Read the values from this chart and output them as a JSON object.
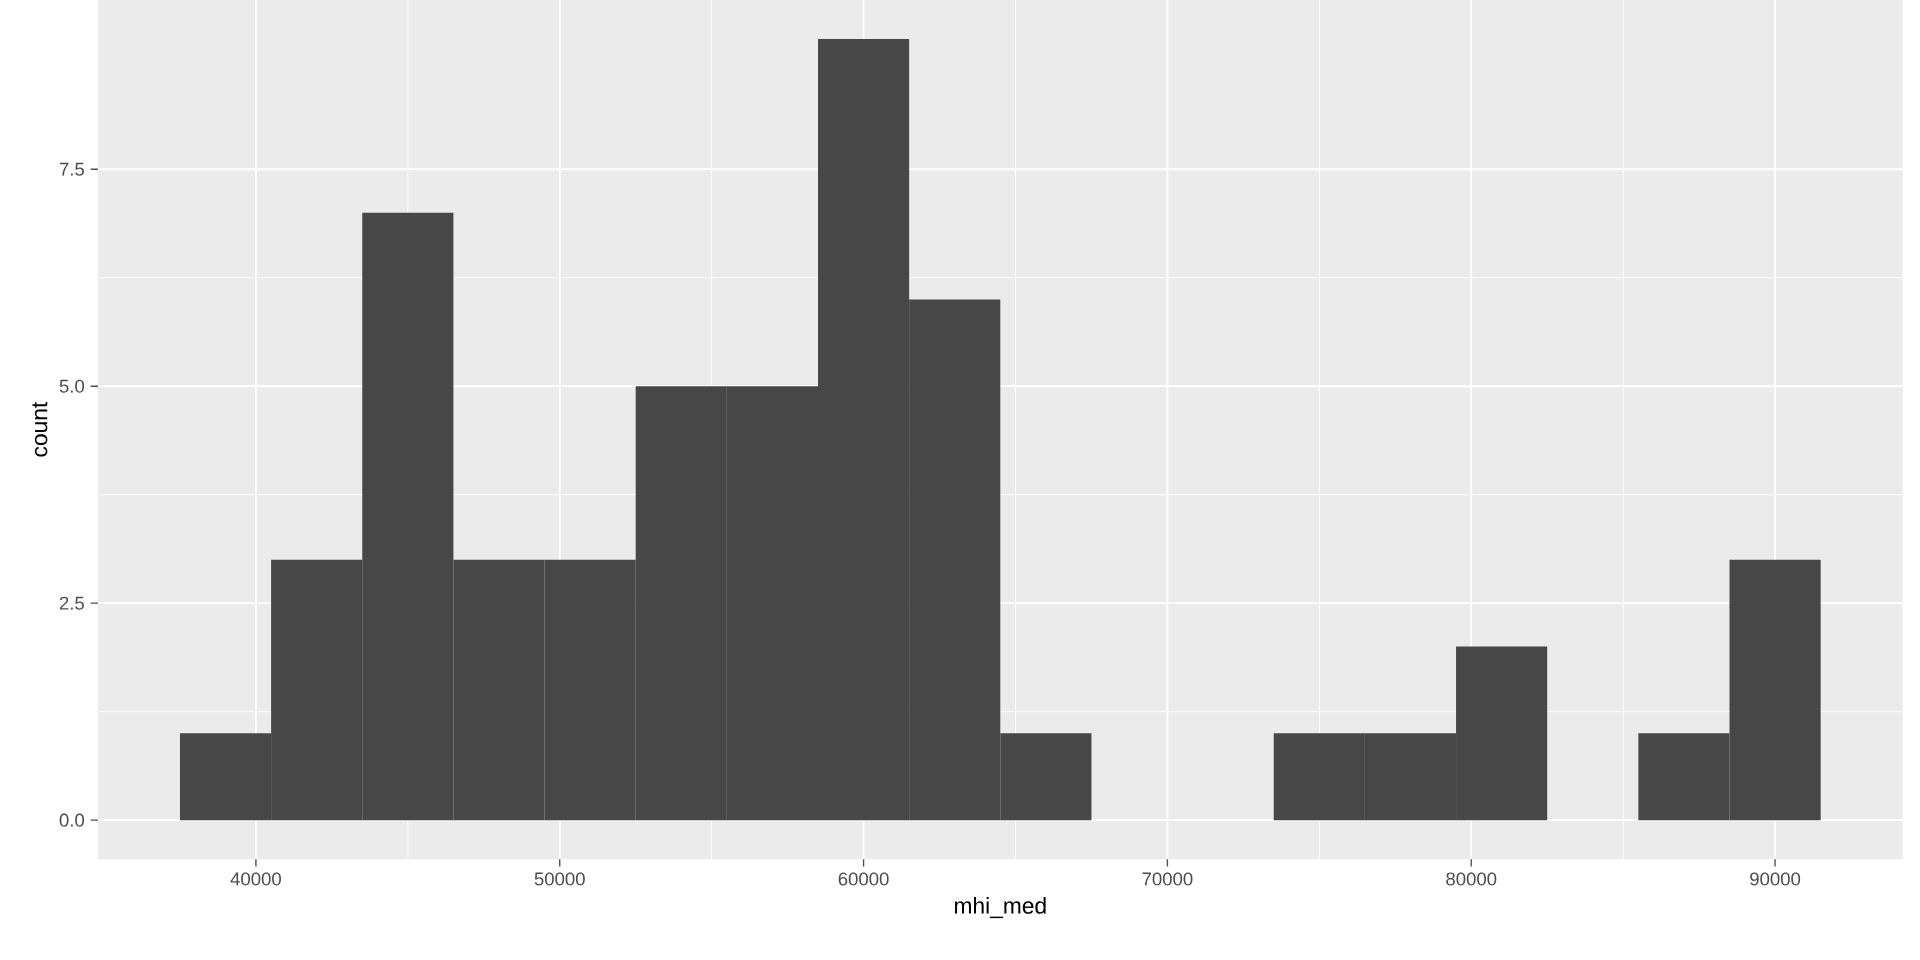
{
  "chart_data": {
    "type": "histogram",
    "xlabel": "mhi_med",
    "ylabel": "count",
    "bins": [
      37500,
      40500,
      43500,
      46500,
      49500,
      52500,
      55500,
      58500,
      61500,
      64500,
      67500,
      70500,
      73500,
      76500,
      79500,
      82500,
      85500,
      88500,
      91500
    ],
    "values": [
      1,
      3,
      7,
      3,
      3,
      5,
      5,
      9,
      6,
      1,
      0,
      0,
      1,
      1,
      2,
      0,
      1,
      3
    ],
    "color": "#474747",
    "xlim": [
      34800,
      94200
    ],
    "ylim": [
      -0.45,
      9.45
    ],
    "xticks": [
      40000,
      50000,
      60000,
      70000,
      80000,
      90000
    ],
    "yticks": [
      {
        "value": 0,
        "label": "0.0"
      },
      {
        "value": 2.5,
        "label": "2.5"
      },
      {
        "value": 5,
        "label": "5.0"
      },
      {
        "value": 7.5,
        "label": "7.5"
      }
    ],
    "grid": true
  }
}
